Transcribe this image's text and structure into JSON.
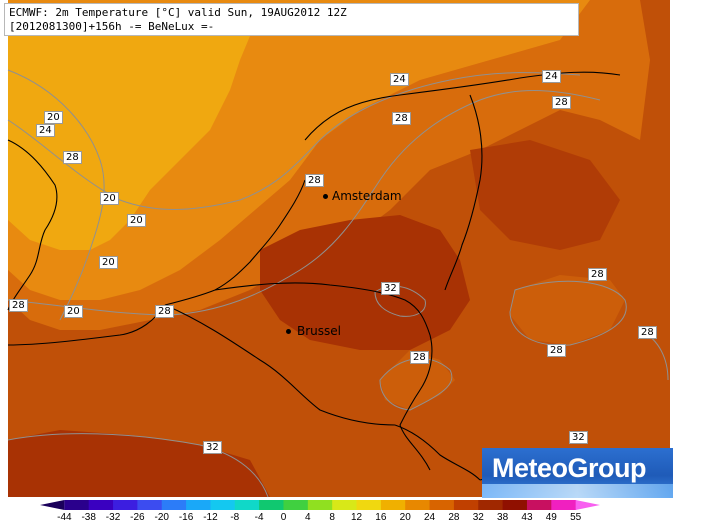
{
  "header": {
    "line1": "ECMWF: 2m Temperature [°C] valid Sun, 19AUG2012 12Z",
    "line2": "[2012081300]+156h -= BeNeLux =-"
  },
  "isotherm_labels": [
    {
      "text": "20"
    },
    {
      "text": "24"
    },
    {
      "text": "28"
    },
    {
      "text": "20"
    },
    {
      "text": "20"
    },
    {
      "text": "20"
    },
    {
      "text": "28"
    },
    {
      "text": "20"
    },
    {
      "text": "28"
    },
    {
      "text": "24"
    },
    {
      "text": "28"
    },
    {
      "text": "24"
    },
    {
      "text": "28"
    },
    {
      "text": "28"
    },
    {
      "text": "32"
    },
    {
      "text": "28"
    },
    {
      "text": "28"
    },
    {
      "text": "28"
    },
    {
      "text": "28"
    },
    {
      "text": "32"
    },
    {
      "text": "32"
    }
  ],
  "cities": [
    {
      "name": "Amsterdam"
    },
    {
      "name": "Brussel"
    }
  ],
  "logo": {
    "text": "MeteoGroup"
  },
  "colorbar": {
    "ticks": [
      "-44",
      "-38",
      "-32",
      "-26",
      "-20",
      "-16",
      "-12",
      "-8",
      "-4",
      "0",
      "4",
      "8",
      "12",
      "16",
      "20",
      "24",
      "28",
      "32",
      "38",
      "43",
      "49",
      "55"
    ],
    "colors": [
      "#1a005a",
      "#2a008c",
      "#3a00c0",
      "#3c1ee0",
      "#3c4cf0",
      "#2c7cf8",
      "#1aa8f8",
      "#14c8f0",
      "#10d8c8",
      "#10c870",
      "#40d040",
      "#90e020",
      "#d8e818",
      "#f0d810",
      "#f0b000",
      "#e88800",
      "#d86400",
      "#c04000",
      "#a02800",
      "#901000",
      "#c81060",
      "#f020c0",
      "#f860f0"
    ]
  }
}
